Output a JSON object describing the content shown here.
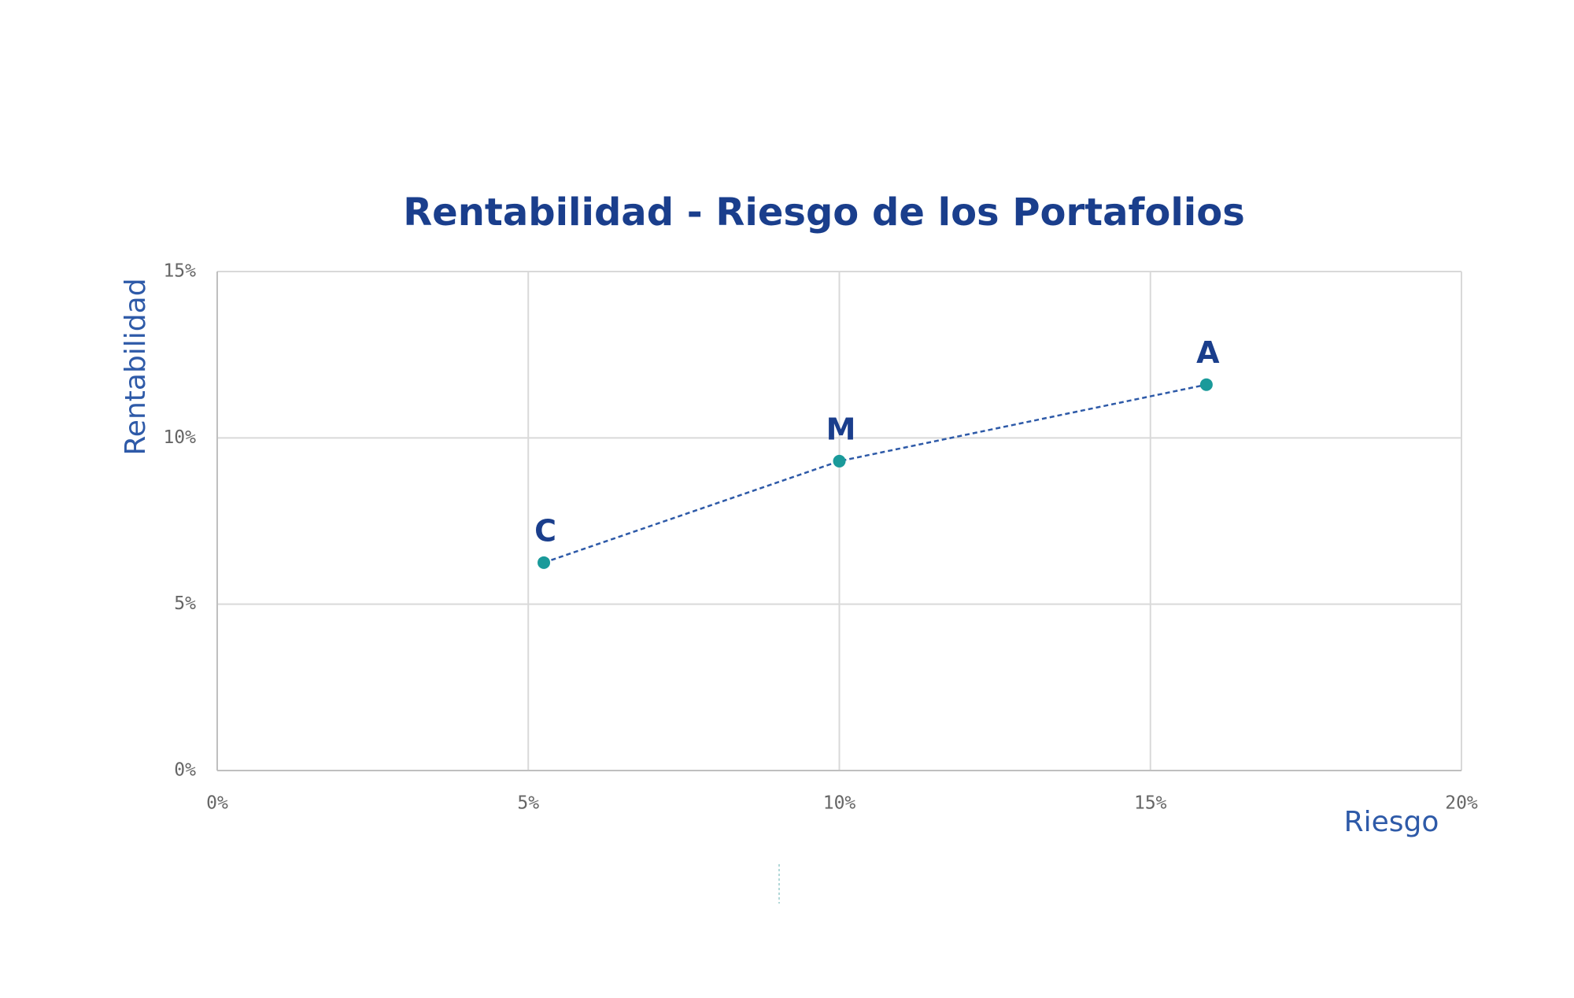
{
  "chart_data": {
    "type": "scatter",
    "title": "Rentabilidad - Riesgo de los Portafolios",
    "x_label": "Riesgo",
    "y_label": "Rentabilidad",
    "series": [
      {
        "x": [
          5.25,
          10.0,
          15.9
        ],
        "values": [
          6.25,
          9.3,
          11.6
        ],
        "point_labels": [
          "C",
          "M",
          "A"
        ],
        "color": "#1a9a9a",
        "line_color": "#2e5aa8",
        "line_style": "dashed"
      }
    ],
    "xlim": [
      0,
      20
    ],
    "ylim": [
      0,
      15
    ],
    "xticks": [
      {
        "value": 0,
        "label": "0%"
      },
      {
        "value": 5,
        "label": "5%"
      },
      {
        "value": 10,
        "label": "10%"
      },
      {
        "value": 15,
        "label": "15%"
      },
      {
        "value": 20,
        "label": "20%"
      }
    ],
    "yticks": [
      {
        "value": 0,
        "label": "0%"
      },
      {
        "value": 5,
        "label": "5%"
      },
      {
        "value": 10,
        "label": "10%"
      },
      {
        "value": 15,
        "label": "15%"
      }
    ],
    "grid": true
  }
}
